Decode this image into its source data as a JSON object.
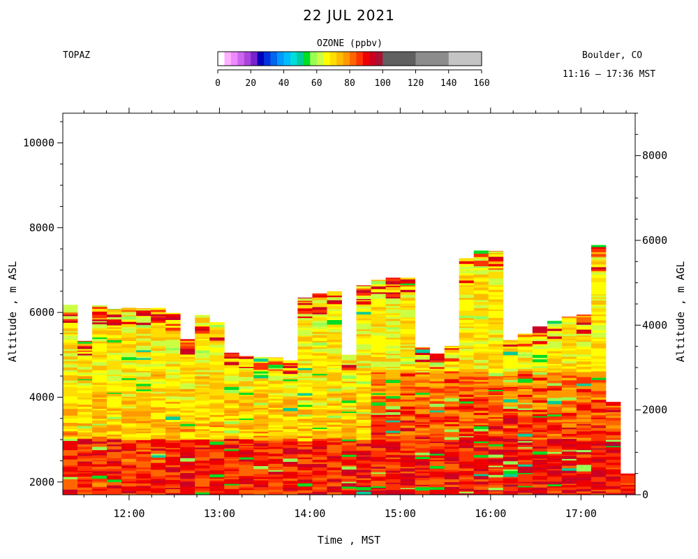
{
  "chart_data": {
    "type": "heatmap",
    "title": "22 JUL 2021",
    "instrument": "TOPAZ",
    "location": "Boulder, CO",
    "time_range": "11:16 – 17:36 MST",
    "xlabel": "Time , MST",
    "ylabel_left": "Altitude , m ASL",
    "ylabel_right": "Altitude , m AGL",
    "colorbar": {
      "title": "OZONE (ppbv)",
      "ticks": [
        0,
        20,
        40,
        60,
        80,
        100,
        120,
        140,
        160
      ],
      "bins": [
        {
          "from": 0,
          "to": 4,
          "color": "#ffffff"
        },
        {
          "from": 4,
          "to": 8,
          "color": "#ffb0ff"
        },
        {
          "from": 8,
          "to": 12,
          "color": "#ee88ff"
        },
        {
          "from": 12,
          "to": 16,
          "color": "#cc66ee"
        },
        {
          "from": 16,
          "to": 20,
          "color": "#aa44dd"
        },
        {
          "from": 20,
          "to": 24,
          "color": "#7722cc"
        },
        {
          "from": 24,
          "to": 28,
          "color": "#0000bb"
        },
        {
          "from": 28,
          "to": 32,
          "color": "#0033dd"
        },
        {
          "from": 32,
          "to": 36,
          "color": "#0066ee"
        },
        {
          "from": 36,
          "to": 40,
          "color": "#0099ff"
        },
        {
          "from": 40,
          "to": 44,
          "color": "#00bbff"
        },
        {
          "from": 44,
          "to": 48,
          "color": "#00dddd"
        },
        {
          "from": 48,
          "to": 52,
          "color": "#00cc99"
        },
        {
          "from": 52,
          "to": 56,
          "color": "#00dd22"
        },
        {
          "from": 56,
          "to": 60,
          "color": "#99ff55"
        },
        {
          "from": 60,
          "to": 64,
          "color": "#ccff44"
        },
        {
          "from": 64,
          "to": 68,
          "color": "#ffff00"
        },
        {
          "from": 68,
          "to": 72,
          "color": "#ffdd00"
        },
        {
          "from": 72,
          "to": 76,
          "color": "#ffbb00"
        },
        {
          "from": 76,
          "to": 80,
          "color": "#ff9900"
        },
        {
          "from": 80,
          "to": 84,
          "color": "#ff6600"
        },
        {
          "from": 84,
          "to": 88,
          "color": "#ff3300"
        },
        {
          "from": 88,
          "to": 92,
          "color": "#ee0000"
        },
        {
          "from": 92,
          "to": 96,
          "color": "#cc0022"
        },
        {
          "from": 96,
          "to": 100,
          "color": "#aa1133"
        },
        {
          "from": 100,
          "to": 120,
          "color": "#606060"
        },
        {
          "from": 120,
          "to": 140,
          "color": "#8c8c8c"
        },
        {
          "from": 140,
          "to": 160,
          "color": "#c4c4c4"
        }
      ]
    },
    "x_axis": {
      "range": [
        "11:16",
        "17:36"
      ],
      "ticks": [
        "12:00",
        "13:00",
        "14:00",
        "15:00",
        "16:00",
        "17:00"
      ]
    },
    "y_left": {
      "range": [
        1700,
        10700
      ],
      "ticks": [
        2000,
        4000,
        6000,
        8000,
        10000
      ],
      "minor_step": 500
    },
    "y_right": {
      "range": [
        0,
        9000
      ],
      "ticks": [
        0,
        2000,
        4000,
        6000,
        8000
      ],
      "minor_step": 500
    },
    "profile_top_asl": [
      6180,
      5330,
      6170,
      6080,
      6110,
      6100,
      6110,
      5990,
      5370,
      5940,
      5770,
      5050,
      4970,
      4950,
      4940,
      4870,
      6350,
      6450,
      6500,
      5000,
      6640,
      6770,
      6820,
      6820,
      5180,
      5030,
      5210,
      7280,
      7460,
      7450,
      5350,
      5500,
      5670,
      5800,
      5900,
      5950,
      7590,
      3890,
      2200
    ],
    "surface_asl": 1700,
    "ozone_profile_description": {
      "surface_to_3000": "80-96 ppbv (orange to dark red), strongest after 15:00",
      "3000_to_5000": "64-80 ppbv (yellow to orange), 84-96 ppbv below 4600 after 15:30",
      "upper_layers": "56-76 ppbv with scattered 52-60 ppbv green streaks and 84-96 ppbv red layers near profile tops"
    }
  }
}
